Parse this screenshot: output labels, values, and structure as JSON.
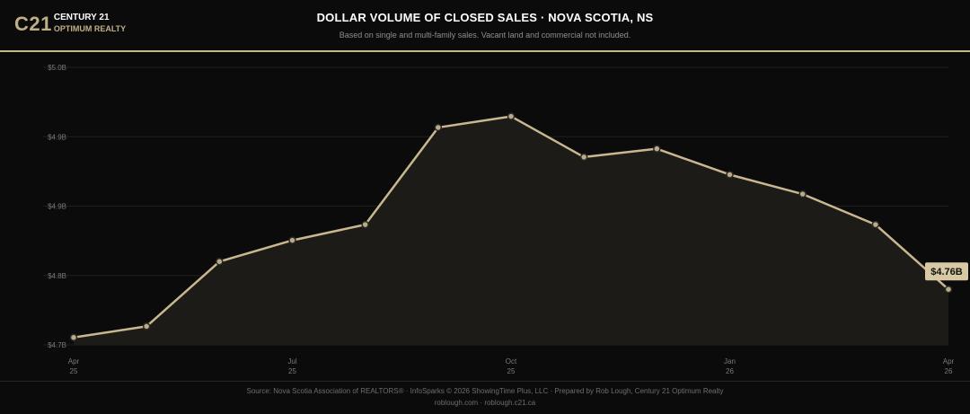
{
  "brand": {
    "mark": "C21",
    "line1": "CENTURY 21",
    "line2": "OPTIMUM REALTY",
    "accent_color": "#c9b78f"
  },
  "header": {
    "title": "DOLLAR VOLUME OF CLOSED SALES · NOVA SCOTIA, NS",
    "subtitle": "Based on single and multi-family sales. Vacant land and commercial not included."
  },
  "chart_data": {
    "type": "area",
    "title": "DOLLAR VOLUME OF CLOSED SALES · NOVA SCOTIA, NS",
    "subtitle": "Based on single and multi-family sales. Vacant land and commercial not included.",
    "xlabel": "",
    "ylabel": "",
    "x": [
      "2025-04",
      "2025-05",
      "2025-06",
      "2025-07",
      "2025-08",
      "2025-09",
      "2025-10",
      "2025-11",
      "2025-12",
      "2026-01",
      "2026-02",
      "2026-03",
      "2026-04"
    ],
    "series": [
      {
        "values": [
          4.708,
          4.72,
          4.79,
          4.813,
          4.83,
          4.935,
          4.947,
          4.903,
          4.912,
          4.884,
          4.863,
          4.83,
          4.76
        ]
      }
    ],
    "ylim": [
      4.7,
      5.0
    ],
    "y_ticks": [
      4.7,
      4.775,
      4.85,
      4.925,
      5.0
    ],
    "y_tick_labels": [
      "$4.7B",
      "$4.8B",
      "$4.9B",
      "$4.9B",
      "$5.0B"
    ],
    "x_ticks": [
      {
        "index": 0,
        "month": "Apr",
        "year": "25"
      },
      {
        "index": 3,
        "month": "Jul",
        "year": "25"
      },
      {
        "index": 6,
        "month": "Oct",
        "year": "25"
      },
      {
        "index": 9,
        "month": "Jan",
        "year": "26"
      },
      {
        "index": 12,
        "month": "Apr",
        "year": "26"
      }
    ],
    "last_value_label": "$4.76B",
    "grid": true,
    "line_color": "#c9b78f",
    "fill_color": "#1c1b17"
  },
  "footer": {
    "source": "Source: Nova Scotia Association of REALTORS® · InfoSparks © 2026 ShowingTime Plus, LLC · Prepared by Rob Lough, Century 21 Optimum Realty",
    "links": "roblough.com · roblough.c21.ca"
  }
}
